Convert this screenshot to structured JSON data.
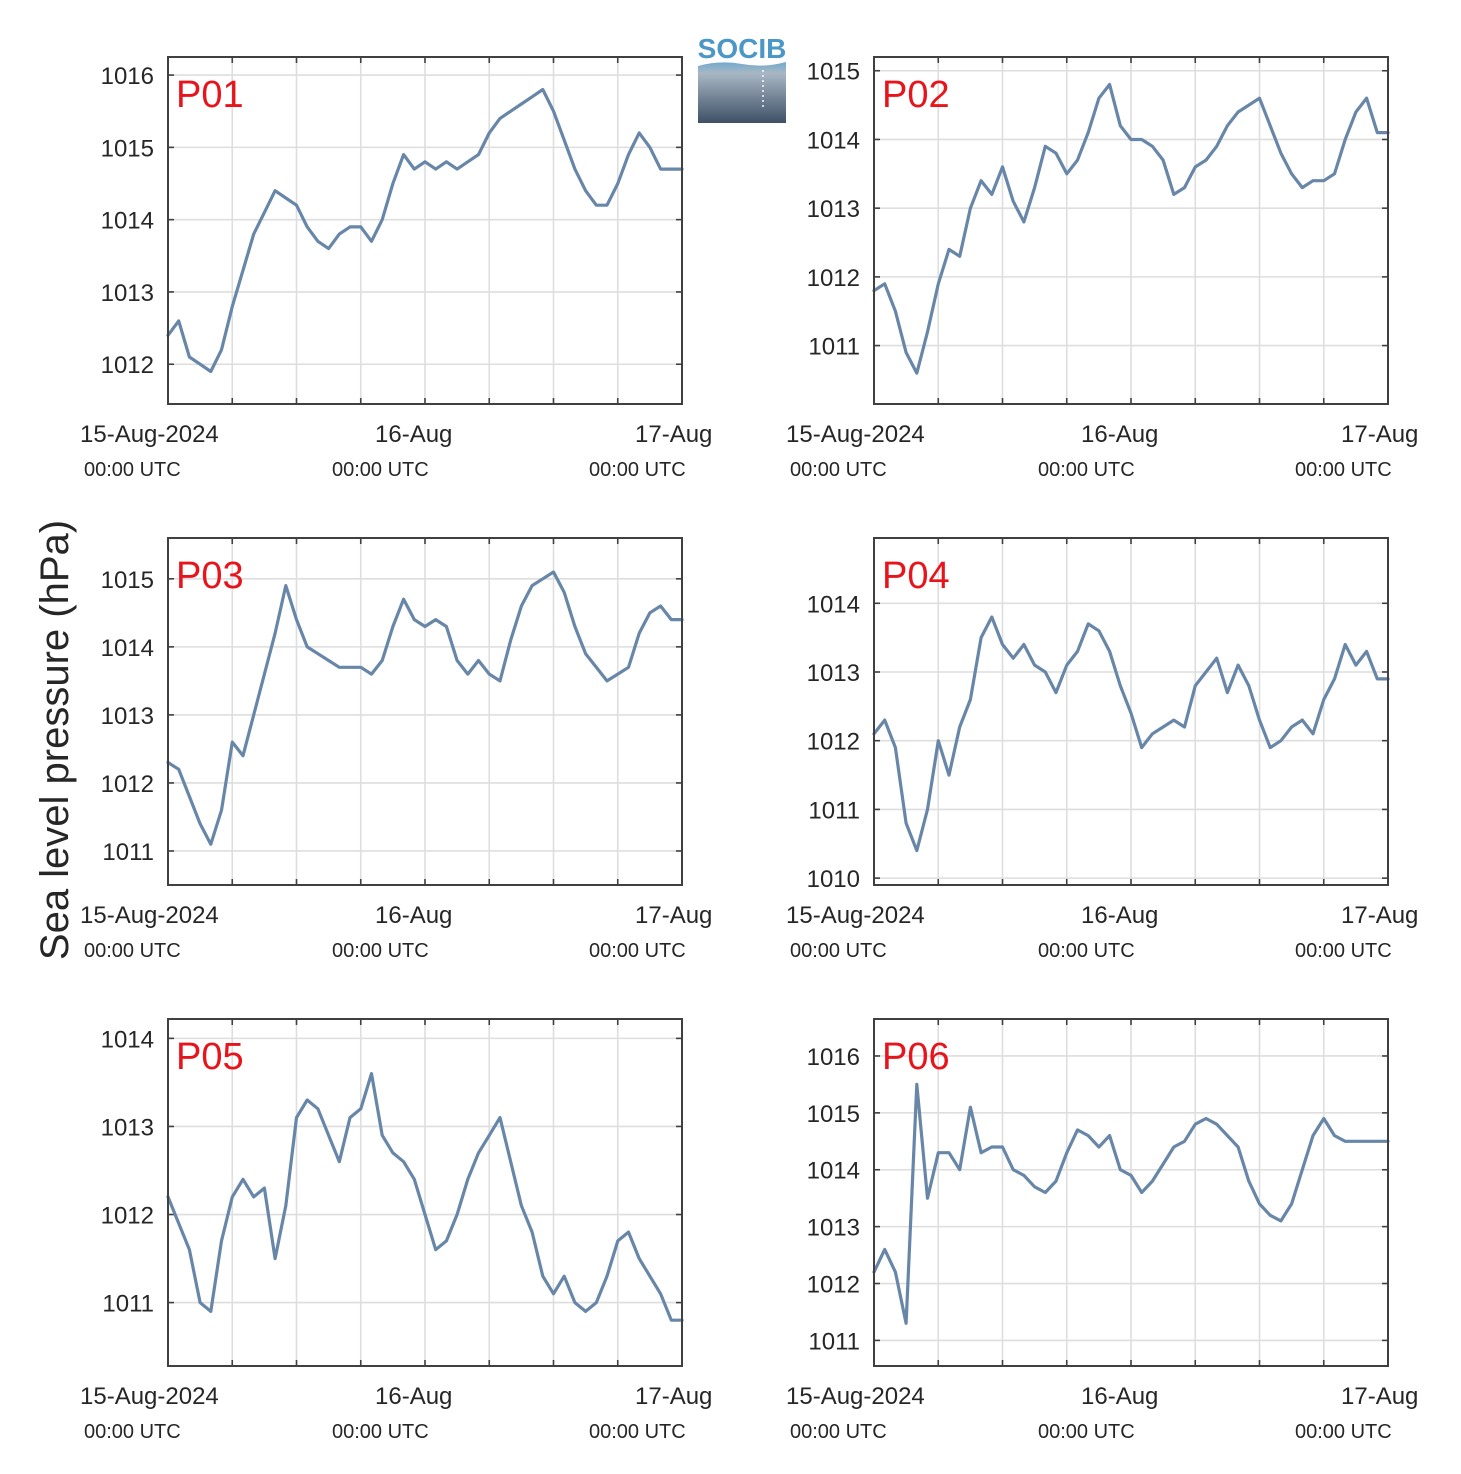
{
  "logo": {
    "text": "SOCIB",
    "text_color": "#4b97c8",
    "top_color": "#6fa9cf",
    "bottom_color": "#3d5066"
  },
  "y_axis_label": "Sea level pressure (hPa)",
  "colors": {
    "series": "#6786a8",
    "panel_label": "#e8141c",
    "grid": "#dedede",
    "axis": "#404040"
  },
  "chart_data": [
    {
      "type": "line",
      "panel": "P01",
      "y_ticks": [
        1012,
        1013,
        1014,
        1015,
        1016
      ],
      "ylim": [
        1011.45,
        1016.25
      ],
      "xlim": [
        "2024-08-15 00:00",
        "2024-08-17 00:00"
      ],
      "x_ticks": [
        {
          "label": "15-Aug-2024",
          "sub": "00:00 UTC"
        },
        {
          "label": "16-Aug",
          "sub": "00:00 UTC"
        },
        {
          "label": "17-Aug",
          "sub": "00:00 UTC"
        }
      ],
      "grid": true,
      "series": [
        {
          "x": [
            0,
            1,
            2,
            3,
            4,
            5,
            6,
            7,
            8,
            9,
            10,
            11,
            12,
            13,
            14,
            15,
            16,
            17,
            18,
            19,
            20,
            21,
            22,
            23,
            24,
            25,
            26,
            27,
            28,
            29,
            30,
            31,
            32,
            33,
            34,
            35,
            36,
            37,
            38,
            39,
            40,
            41,
            42,
            43,
            44,
            45,
            46,
            47,
            48
          ],
          "values": [
            1012.4,
            1012.6,
            1012.1,
            1012.0,
            1011.9,
            1012.2,
            1012.8,
            1013.3,
            1013.8,
            1014.1,
            1014.4,
            1014.3,
            1014.2,
            1013.9,
            1013.7,
            1013.6,
            1013.8,
            1013.9,
            1013.9,
            1013.7,
            1014.0,
            1014.5,
            1014.9,
            1014.7,
            1014.8,
            1014.7,
            1014.8,
            1014.7,
            1014.8,
            1014.9,
            1015.2,
            1015.4,
            1015.5,
            1015.6,
            1015.7,
            1015.8,
            1015.5,
            1015.1,
            1014.7,
            1014.4,
            1014.2,
            1014.2,
            1014.5,
            1014.9,
            1015.2,
            1015.0,
            1014.7,
            1014.7,
            1014.7
          ]
        }
      ]
    },
    {
      "type": "line",
      "panel": "P02",
      "y_ticks": [
        1011,
        1012,
        1013,
        1014,
        1015
      ],
      "ylim": [
        1010.15,
        1015.2
      ],
      "xlim": [
        "2024-08-15 00:00",
        "2024-08-17 00:00"
      ],
      "x_ticks": [
        {
          "label": "15-Aug-2024",
          "sub": "00:00 UTC"
        },
        {
          "label": "16-Aug",
          "sub": "00:00 UTC"
        },
        {
          "label": "17-Aug",
          "sub": "00:00 UTC"
        }
      ],
      "grid": true,
      "series": [
        {
          "x": [
            0,
            1,
            2,
            3,
            4,
            5,
            6,
            7,
            8,
            9,
            10,
            11,
            12,
            13,
            14,
            15,
            16,
            17,
            18,
            19,
            20,
            21,
            22,
            23,
            24,
            25,
            26,
            27,
            28,
            29,
            30,
            31,
            32,
            33,
            34,
            35,
            36,
            37,
            38,
            39,
            40,
            41,
            42,
            43,
            44,
            45,
            46,
            47,
            48
          ],
          "values": [
            1011.8,
            1011.9,
            1011.5,
            1010.9,
            1010.6,
            1011.2,
            1011.9,
            1012.4,
            1012.3,
            1013.0,
            1013.4,
            1013.2,
            1013.6,
            1013.1,
            1012.8,
            1013.3,
            1013.9,
            1013.8,
            1013.5,
            1013.7,
            1014.1,
            1014.6,
            1014.8,
            1014.2,
            1014.0,
            1014.0,
            1013.9,
            1013.7,
            1013.2,
            1013.3,
            1013.6,
            1013.7,
            1013.9,
            1014.2,
            1014.4,
            1014.5,
            1014.6,
            1014.2,
            1013.8,
            1013.5,
            1013.3,
            1013.4,
            1013.4,
            1013.5,
            1014.0,
            1014.4,
            1014.6,
            1014.1,
            1014.1
          ]
        }
      ]
    },
    {
      "type": "line",
      "panel": "P03",
      "y_ticks": [
        1011,
        1012,
        1013,
        1014,
        1015
      ],
      "ylim": [
        1010.5,
        1015.6
      ],
      "xlim": [
        "2024-08-15 00:00",
        "2024-08-17 00:00"
      ],
      "x_ticks": [
        {
          "label": "15-Aug-2024",
          "sub": "00:00 UTC"
        },
        {
          "label": "16-Aug",
          "sub": "00:00 UTC"
        },
        {
          "label": "17-Aug",
          "sub": "00:00 UTC"
        }
      ],
      "grid": true,
      "series": [
        {
          "x": [
            0,
            1,
            2,
            3,
            4,
            5,
            6,
            7,
            8,
            9,
            10,
            11,
            12,
            13,
            14,
            15,
            16,
            17,
            18,
            19,
            20,
            21,
            22,
            23,
            24,
            25,
            26,
            27,
            28,
            29,
            30,
            31,
            32,
            33,
            34,
            35,
            36,
            37,
            38,
            39,
            40,
            41,
            42,
            43,
            44,
            45,
            46,
            47,
            48
          ],
          "values": [
            1012.3,
            1012.2,
            1011.8,
            1011.4,
            1011.1,
            1011.6,
            1012.6,
            1012.4,
            1013.0,
            1013.6,
            1014.2,
            1014.9,
            1014.4,
            1014.0,
            1013.9,
            1013.8,
            1013.7,
            1013.7,
            1013.7,
            1013.6,
            1013.8,
            1014.3,
            1014.7,
            1014.4,
            1014.3,
            1014.4,
            1014.3,
            1013.8,
            1013.6,
            1013.8,
            1013.6,
            1013.5,
            1014.1,
            1014.6,
            1014.9,
            1015.0,
            1015.1,
            1014.8,
            1014.3,
            1013.9,
            1013.7,
            1013.5,
            1013.6,
            1013.7,
            1014.2,
            1014.5,
            1014.6,
            1014.4,
            1014.4
          ]
        }
      ]
    },
    {
      "type": "line",
      "panel": "P04",
      "y_ticks": [
        1010,
        1011,
        1012,
        1013,
        1014
      ],
      "ylim": [
        1009.9,
        1014.95
      ],
      "xlim": [
        "2024-08-15 00:00",
        "2024-08-17 00:00"
      ],
      "x_ticks": [
        {
          "label": "15-Aug-2024",
          "sub": "00:00 UTC"
        },
        {
          "label": "16-Aug",
          "sub": "00:00 UTC"
        },
        {
          "label": "17-Aug",
          "sub": "00:00 UTC"
        }
      ],
      "grid": true,
      "series": [
        {
          "x": [
            0,
            1,
            2,
            3,
            4,
            5,
            6,
            7,
            8,
            9,
            10,
            11,
            12,
            13,
            14,
            15,
            16,
            17,
            18,
            19,
            20,
            21,
            22,
            23,
            24,
            25,
            26,
            27,
            28,
            29,
            30,
            31,
            32,
            33,
            34,
            35,
            36,
            37,
            38,
            39,
            40,
            41,
            42,
            43,
            44,
            45,
            46,
            47,
            48
          ],
          "values": [
            1012.1,
            1012.3,
            1011.9,
            1010.8,
            1010.4,
            1011.0,
            1012.0,
            1011.5,
            1012.2,
            1012.6,
            1013.5,
            1013.8,
            1013.4,
            1013.2,
            1013.4,
            1013.1,
            1013.0,
            1012.7,
            1013.1,
            1013.3,
            1013.7,
            1013.6,
            1013.3,
            1012.8,
            1012.4,
            1011.9,
            1012.1,
            1012.2,
            1012.3,
            1012.2,
            1012.8,
            1013.0,
            1013.2,
            1012.7,
            1013.1,
            1012.8,
            1012.3,
            1011.9,
            1012.0,
            1012.2,
            1012.3,
            1012.1,
            1012.6,
            1012.9,
            1013.4,
            1013.1,
            1013.3,
            1012.9,
            1012.9
          ]
        }
      ]
    },
    {
      "type": "line",
      "panel": "P05",
      "y_ticks": [
        1011,
        1012,
        1013,
        1014
      ],
      "ylim": [
        1010.28,
        1014.22
      ],
      "xlim": [
        "2024-08-15 00:00",
        "2024-08-17 00:00"
      ],
      "x_ticks": [
        {
          "label": "15-Aug-2024",
          "sub": "00:00 UTC"
        },
        {
          "label": "16-Aug",
          "sub": "00:00 UTC"
        },
        {
          "label": "17-Aug",
          "sub": "00:00 UTC"
        }
      ],
      "grid": true,
      "series": [
        {
          "x": [
            0,
            1,
            2,
            3,
            4,
            5,
            6,
            7,
            8,
            9,
            10,
            11,
            12,
            13,
            14,
            15,
            16,
            17,
            18,
            19,
            20,
            21,
            22,
            23,
            24,
            25,
            26,
            27,
            28,
            29,
            30,
            31,
            32,
            33,
            34,
            35,
            36,
            37,
            38,
            39,
            40,
            41,
            42,
            43,
            44,
            45,
            46,
            47,
            48
          ],
          "values": [
            1012.2,
            1011.9,
            1011.6,
            1011.0,
            1010.9,
            1011.7,
            1012.2,
            1012.4,
            1012.2,
            1012.3,
            1011.5,
            1012.1,
            1013.1,
            1013.3,
            1013.2,
            1012.9,
            1012.6,
            1013.1,
            1013.2,
            1013.6,
            1012.9,
            1012.7,
            1012.6,
            1012.4,
            1012.0,
            1011.6,
            1011.7,
            1012.0,
            1012.4,
            1012.7,
            1012.9,
            1013.1,
            1012.6,
            1012.1,
            1011.8,
            1011.3,
            1011.1,
            1011.3,
            1011.0,
            1010.9,
            1011.0,
            1011.3,
            1011.7,
            1011.8,
            1011.5,
            1011.3,
            1011.1,
            1010.8,
            1010.8
          ]
        }
      ]
    },
    {
      "type": "line",
      "panel": "P06",
      "y_ticks": [
        1011,
        1012,
        1013,
        1014,
        1015,
        1016
      ],
      "ylim": [
        1010.55,
        1016.65
      ],
      "xlim": [
        "2024-08-15 00:00",
        "2024-08-17 00:00"
      ],
      "x_ticks": [
        {
          "label": "15-Aug-2024",
          "sub": "00:00 UTC"
        },
        {
          "label": "16-Aug",
          "sub": "00:00 UTC"
        },
        {
          "label": "17-Aug",
          "sub": "00:00 UTC"
        }
      ],
      "grid": true,
      "series": [
        {
          "x": [
            0,
            1,
            2,
            3,
            4,
            5,
            6,
            7,
            8,
            9,
            10,
            11,
            12,
            13,
            14,
            15,
            16,
            17,
            18,
            19,
            20,
            21,
            22,
            23,
            24,
            25,
            26,
            27,
            28,
            29,
            30,
            31,
            32,
            33,
            34,
            35,
            36,
            37,
            38,
            39,
            40,
            41,
            42,
            43,
            44,
            45,
            46,
            47,
            48
          ],
          "values": [
            1012.2,
            1012.6,
            1012.2,
            1011.3,
            1015.5,
            1013.5,
            1014.3,
            1014.3,
            1014.0,
            1015.1,
            1014.3,
            1014.4,
            1014.4,
            1014.0,
            1013.9,
            1013.7,
            1013.6,
            1013.8,
            1014.3,
            1014.7,
            1014.6,
            1014.4,
            1014.6,
            1014.0,
            1013.9,
            1013.6,
            1013.8,
            1014.1,
            1014.4,
            1014.5,
            1014.8,
            1014.9,
            1014.8,
            1014.6,
            1014.4,
            1013.8,
            1013.4,
            1013.2,
            1013.1,
            1013.4,
            1014.0,
            1014.6,
            1014.9,
            1014.6,
            1014.5,
            1014.5,
            1014.5,
            1014.5,
            1014.5
          ]
        }
      ]
    }
  ]
}
